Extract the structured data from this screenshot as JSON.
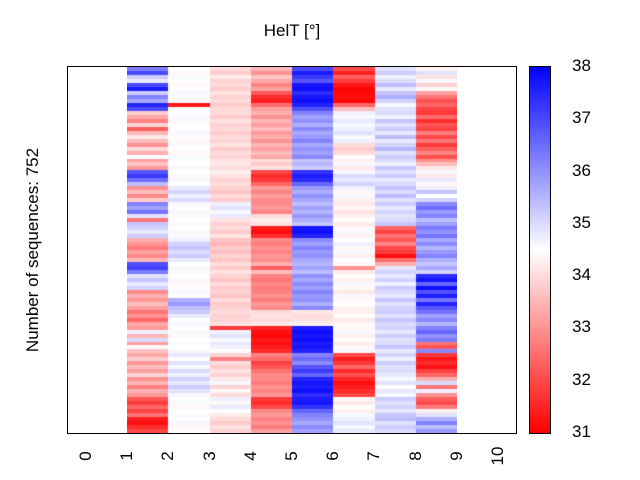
{
  "title": "HelT [°]",
  "ylabel": "Number of sequences: 752",
  "chart_data": {
    "type": "heatmap",
    "title": "HelT [°]",
    "ylabel": "Number of sequences: 752",
    "n_sequences": 752,
    "x_ticks": [
      "0",
      "1",
      "2",
      "3",
      "4",
      "5",
      "6",
      "7",
      "8",
      "9",
      "10"
    ],
    "x_axis_range": [
      -0.45,
      10.46
    ],
    "data_x_start": 1,
    "data_x_end": 9,
    "legend_position": "right-colorbar",
    "grid_lines": false,
    "colorbar": {
      "min": 31,
      "max": 38,
      "midpoint": 34.5,
      "tick_labels": [
        "38",
        "37",
        "36",
        "35",
        "34",
        "33",
        "32",
        "31"
      ],
      "low_color": "#ff0000",
      "mid_color": "#ffffff",
      "high_color": "#0000ff"
    },
    "grid": {
      "rows": 92,
      "cols": 8,
      "values": [
        [
          36.3,
          34.5,
          34.0,
          33.5,
          37.0,
          32.0,
          34.9,
          34.3
        ],
        [
          37.0,
          34.4,
          33.8,
          33.0,
          37.6,
          31.5,
          35.2,
          34.9
        ],
        [
          35.2,
          34.6,
          34.2,
          33.7,
          37.2,
          32.3,
          34.7,
          34.1
        ],
        [
          34.8,
          34.5,
          33.9,
          33.3,
          36.8,
          31.8,
          35.0,
          34.6
        ],
        [
          37.0,
          34.4,
          34.0,
          32.8,
          37.7,
          31.3,
          35.4,
          33.9
        ],
        [
          37.6,
          34.5,
          33.8,
          33.2,
          37.8,
          31.1,
          34.8,
          34.4
        ],
        [
          35.2,
          34.6,
          34.1,
          32.2,
          37.4,
          31.1,
          35.3,
          33.2
        ],
        [
          36.2,
          34.5,
          33.9,
          31.6,
          37.7,
          31.2,
          35.6,
          32.6
        ],
        [
          35.7,
          34.4,
          34.0,
          31.4,
          37.8,
          31.1,
          35.1,
          32.1
        ],
        [
          37.5,
          31.3,
          33.8,
          32.5,
          37.5,
          32.4,
          34.6,
          32.4
        ],
        [
          37.0,
          34.5,
          34.0,
          33.2,
          36.9,
          33.6,
          34.9,
          31.9
        ],
        [
          33.8,
          34.5,
          34.0,
          33.4,
          36.2,
          34.7,
          35.0,
          31.8
        ],
        [
          33.3,
          34.6,
          33.8,
          33.0,
          35.8,
          34.6,
          34.7,
          32.5
        ],
        [
          32.8,
          34.4,
          34.1,
          33.5,
          36.0,
          34.8,
          35.3,
          31.6
        ],
        [
          33.9,
          34.5,
          33.9,
          33.2,
          35.6,
          34.6,
          34.9,
          32.2
        ],
        [
          32.3,
          34.5,
          34.0,
          33.6,
          36.1,
          34.7,
          35.2,
          31.9
        ],
        [
          33.5,
          34.6,
          33.8,
          33.1,
          35.7,
          34.9,
          34.8,
          32.7
        ],
        [
          34.2,
          34.5,
          34.0,
          33.4,
          35.9,
          34.6,
          35.4,
          32.0
        ],
        [
          33.6,
          34.4,
          33.9,
          33.0,
          36.2,
          34.7,
          34.8,
          32.6
        ],
        [
          33.0,
          34.6,
          34.1,
          33.5,
          35.7,
          34.0,
          35.1,
          31.8
        ],
        [
          34.0,
          34.5,
          33.8,
          33.2,
          36.0,
          33.8,
          35.5,
          32.3
        ],
        [
          33.4,
          34.4,
          34.0,
          33.6,
          35.8,
          34.0,
          34.9,
          32.8
        ],
        [
          34.5,
          34.6,
          33.9,
          33.3,
          36.1,
          34.5,
          35.2,
          32.1
        ],
        [
          33.2,
          34.5,
          34.1,
          34.0,
          35.3,
          34.3,
          35.0,
          33.0
        ],
        [
          33.7,
          34.5,
          34.2,
          33.8,
          35.5,
          34.6,
          34.7,
          33.6
        ],
        [
          33.1,
          34.6,
          34.0,
          34.1,
          35.2,
          34.2,
          35.3,
          34.2
        ],
        [
          36.8,
          34.5,
          34.3,
          32.0,
          37.3,
          34.6,
          34.9,
          34.6
        ],
        [
          37.2,
          34.4,
          34.1,
          31.6,
          37.6,
          35.0,
          35.2,
          34.2
        ],
        [
          36.5,
          34.6,
          33.9,
          31.8,
          37.4,
          34.8,
          34.8,
          34.8
        ],
        [
          35.4,
          34.5,
          34.0,
          32.4,
          36.6,
          35.1,
          35.0,
          34.4
        ],
        [
          33.0,
          34.8,
          33.9,
          33.1,
          35.9,
          34.7,
          35.3,
          34.7
        ],
        [
          33.6,
          35.1,
          33.7,
          32.8,
          35.6,
          34.4,
          35.0,
          35.3
        ],
        [
          32.9,
          34.7,
          34.0,
          33.2,
          36.0,
          34.6,
          35.4,
          34.5
        ],
        [
          33.8,
          35.0,
          33.8,
          32.9,
          35.7,
          34.3,
          34.9,
          35.1
        ],
        [
          36.2,
          34.6,
          34.7,
          32.9,
          35.4,
          34.2,
          35.2,
          36.1
        ],
        [
          35.8,
          34.5,
          34.9,
          33.1,
          35.8,
          34.4,
          34.8,
          36.5
        ],
        [
          36.4,
          34.6,
          34.6,
          32.8,
          35.5,
          34.1,
          35.1,
          35.9
        ],
        [
          34.9,
          34.4,
          34.8,
          34.0,
          35.9,
          34.3,
          34.9,
          36.2
        ],
        [
          32.6,
          34.5,
          34.1,
          34.3,
          35.6,
          34.5,
          35.0,
          35.4
        ],
        [
          35.3,
          34.6,
          33.9,
          34.1,
          35.3,
          34.2,
          35.3,
          35.8
        ],
        [
          35.1,
          34.5,
          34.0,
          31.4,
          37.7,
          34.4,
          32.4,
          36.3
        ],
        [
          34.8,
          34.4,
          33.8,
          31.2,
          37.8,
          34.6,
          31.9,
          36.0
        ],
        [
          35.2,
          34.6,
          34.1,
          31.6,
          37.5,
          34.3,
          32.6,
          36.4
        ],
        [
          33.4,
          34.7,
          33.7,
          32.9,
          36.1,
          34.5,
          32.2,
          35.7
        ],
        [
          33.0,
          35.1,
          33.5,
          32.7,
          35.8,
          34.7,
          32.8,
          36.1
        ],
        [
          32.7,
          35.3,
          33.8,
          33.0,
          36.2,
          34.4,
          32.0,
          35.5
        ],
        [
          33.2,
          35.0,
          33.6,
          32.8,
          35.9,
          34.6,
          31.8,
          35.9
        ],
        [
          32.9,
          35.2,
          33.9,
          33.1,
          36.0,
          34.3,
          31.2,
          36.2
        ],
        [
          33.5,
          34.8,
          33.7,
          32.9,
          35.7,
          34.5,
          32.5,
          35.6
        ],
        [
          36.9,
          34.5,
          34.0,
          33.4,
          35.5,
          34.4,
          33.4,
          35.3
        ],
        [
          37.1,
          34.6,
          33.8,
          32.3,
          35.8,
          33.0,
          34.8,
          35.7
        ],
        [
          36.3,
          34.4,
          34.1,
          33.6,
          35.4,
          34.2,
          35.1,
          35.1
        ],
        [
          34.9,
          34.5,
          33.9,
          32.8,
          36.0,
          34.5,
          34.8,
          37.4
        ],
        [
          35.3,
          34.6,
          33.7,
          32.6,
          35.7,
          34.3,
          35.1,
          37.7
        ],
        [
          34.8,
          34.4,
          34.0,
          32.9,
          36.1,
          34.6,
          34.7,
          36.6
        ],
        [
          35.1,
          34.5,
          33.8,
          32.7,
          35.8,
          34.4,
          35.2,
          37.8
        ],
        [
          32.9,
          34.6,
          33.9,
          32.8,
          36.2,
          34.2,
          35.0,
          36.9
        ],
        [
          33.4,
          34.5,
          33.7,
          33.0,
          35.9,
          34.6,
          34.8,
          37.6
        ],
        [
          33.1,
          35.6,
          34.0,
          32.7,
          36.0,
          34.4,
          35.3,
          36.4
        ],
        [
          33.6,
          35.9,
          33.8,
          33.1,
          35.6,
          34.5,
          34.9,
          37.5
        ],
        [
          33.2,
          35.4,
          33.9,
          32.9,
          36.1,
          34.3,
          35.1,
          36.8
        ],
        [
          32.6,
          35.2,
          34.0,
          34.0,
          34.2,
          34.3,
          35.2,
          36.4
        ],
        [
          33.0,
          34.8,
          33.9,
          34.1,
          34.0,
          34.5,
          34.9,
          35.8
        ],
        [
          32.4,
          34.5,
          33.9,
          34.0,
          34.1,
          34.2,
          35.3,
          36.1
        ],
        [
          33.3,
          34.6,
          34.1,
          34.2,
          34.3,
          34.4,
          35.0,
          35.5
        ],
        [
          33.1,
          34.5,
          31.8,
          31.5,
          37.6,
          34.4,
          35.1,
          36.2
        ],
        [
          34.7,
          34.6,
          34.7,
          31.2,
          37.8,
          34.6,
          34.8,
          36.6
        ],
        [
          33.5,
          34.4,
          34.9,
          31.1,
          37.7,
          34.3,
          35.2,
          36.0
        ],
        [
          35.0,
          34.5,
          34.6,
          31.3,
          37.8,
          34.5,
          34.9,
          36.3
        ],
        [
          33.2,
          34.6,
          34.8,
          31.2,
          37.6,
          34.2,
          35.0,
          32.6
        ],
        [
          34.4,
          34.5,
          34.7,
          31.4,
          37.7,
          34.4,
          35.3,
          32.2
        ],
        [
          33.7,
          34.4,
          34.5,
          31.6,
          37.5,
          34.6,
          34.8,
          36.1
        ],
        [
          33.3,
          34.8,
          33.9,
          32.8,
          36.2,
          32.0,
          35.1,
          31.8
        ],
        [
          33.8,
          34.5,
          32.8,
          32.5,
          36.5,
          31.4,
          34.7,
          31.3
        ],
        [
          33.1,
          34.9,
          34.0,
          31.9,
          36.1,
          31.8,
          35.2,
          31.6
        ],
        [
          33.6,
          34.6,
          33.8,
          32.2,
          36.8,
          32.4,
          34.9,
          31.2
        ],
        [
          33.2,
          35.0,
          34.1,
          32.6,
          37.2,
          31.6,
          35.0,
          31.9
        ],
        [
          33.9,
          34.7,
          33.9,
          32.9,
          36.6,
          32.1,
          34.8,
          32.4
        ],
        [
          33.0,
          35.1,
          34.2,
          32.9,
          37.5,
          31.5,
          34.6,
          33.4
        ],
        [
          33.5,
          34.8,
          34.6,
          32.7,
          37.7,
          31.2,
          34.9,
          35.0
        ],
        [
          32.8,
          35.2,
          33.9,
          33.0,
          37.6,
          31.4,
          34.5,
          32.6
        ],
        [
          33.4,
          34.9,
          34.4,
          32.8,
          37.8,
          31.6,
          34.8,
          34.7
        ],
        [
          33.1,
          34.6,
          34.0,
          33.1,
          37.4,
          31.9,
          34.6,
          33.0
        ],
        [
          32.2,
          34.5,
          34.7,
          31.8,
          37.6,
          34.4,
          35.2,
          32.3
        ],
        [
          31.8,
          34.6,
          34.4,
          31.6,
          37.7,
          34.2,
          34.9,
          32.0
        ],
        [
          32.4,
          34.4,
          34.8,
          32.0,
          37.3,
          34.5,
          35.1,
          32.7
        ],
        [
          31.9,
          34.5,
          34.5,
          32.9,
          36.6,
          34.3,
          34.8,
          34.3
        ],
        [
          32.6,
          34.6,
          34.2,
          33.1,
          36.2,
          34.6,
          35.3,
          34.9
        ],
        [
          31.4,
          34.5,
          34.0,
          32.8,
          36.0,
          34.7,
          35.4,
          35.6
        ],
        [
          31.2,
          34.6,
          33.8,
          33.0,
          35.7,
          34.9,
          34.9,
          36.2
        ],
        [
          31.6,
          34.4,
          34.1,
          32.7,
          36.1,
          34.6,
          35.2,
          35.4
        ],
        [
          32.0,
          34.5,
          33.9,
          33.2,
          35.8,
          34.8,
          35.0,
          35.9
        ]
      ]
    }
  }
}
